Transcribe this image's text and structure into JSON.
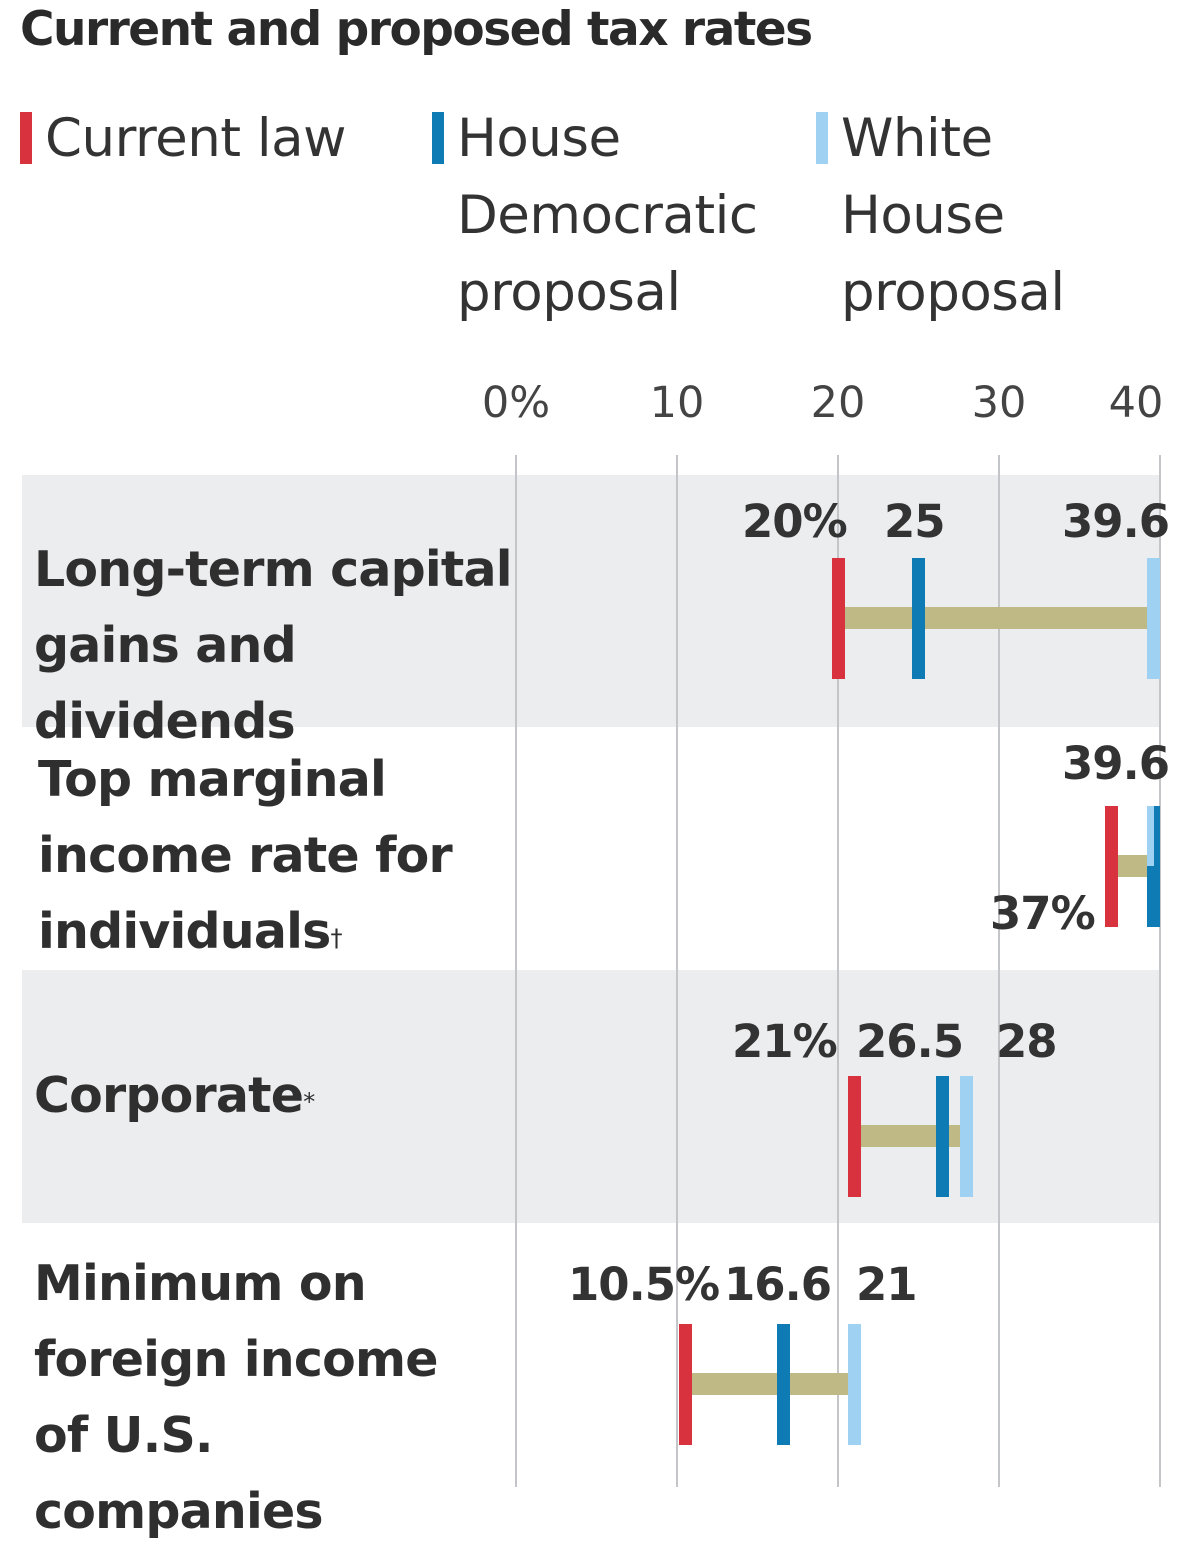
{
  "chart_data": {
    "type": "range",
    "title": "Current and proposed tax rates",
    "xlim": [
      0,
      40
    ],
    "x_ticks": [
      "0%",
      "10",
      "20",
      "30",
      "40"
    ],
    "legend": [
      {
        "name": "Current law",
        "color": "#d9323f"
      },
      {
        "name": "House Democratic proposal",
        "color": "#0e7bb5"
      },
      {
        "name": "White House proposal",
        "color": "#9fd1f2"
      }
    ],
    "categories": [
      {
        "label": "Long-term capital gains and dividends",
        "footnote": ""
      },
      {
        "label": "Top marginal income rate for individuals",
        "footnote": "†"
      },
      {
        "label": "Corporate",
        "footnote": "*"
      },
      {
        "label": "Minimum on foreign income of U.S. companies",
        "footnote": ""
      }
    ],
    "series": [
      {
        "name": "Current law",
        "values": [
          20,
          37,
          21,
          10.5
        ]
      },
      {
        "name": "House Democratic proposal",
        "values": [
          25,
          39.6,
          26.5,
          16.6
        ]
      },
      {
        "name": "White House proposal",
        "values": [
          39.6,
          39.6,
          28,
          21
        ]
      }
    ],
    "value_labels": [
      [
        "20%",
        "25",
        "39.6"
      ],
      [
        "37%",
        "",
        "39.6"
      ],
      [
        "21%",
        "26.5",
        "28"
      ],
      [
        "10.5%",
        "16.6",
        "21"
      ]
    ],
    "grid": true,
    "legend_position": "top",
    "connector_color": "#bfb985"
  }
}
